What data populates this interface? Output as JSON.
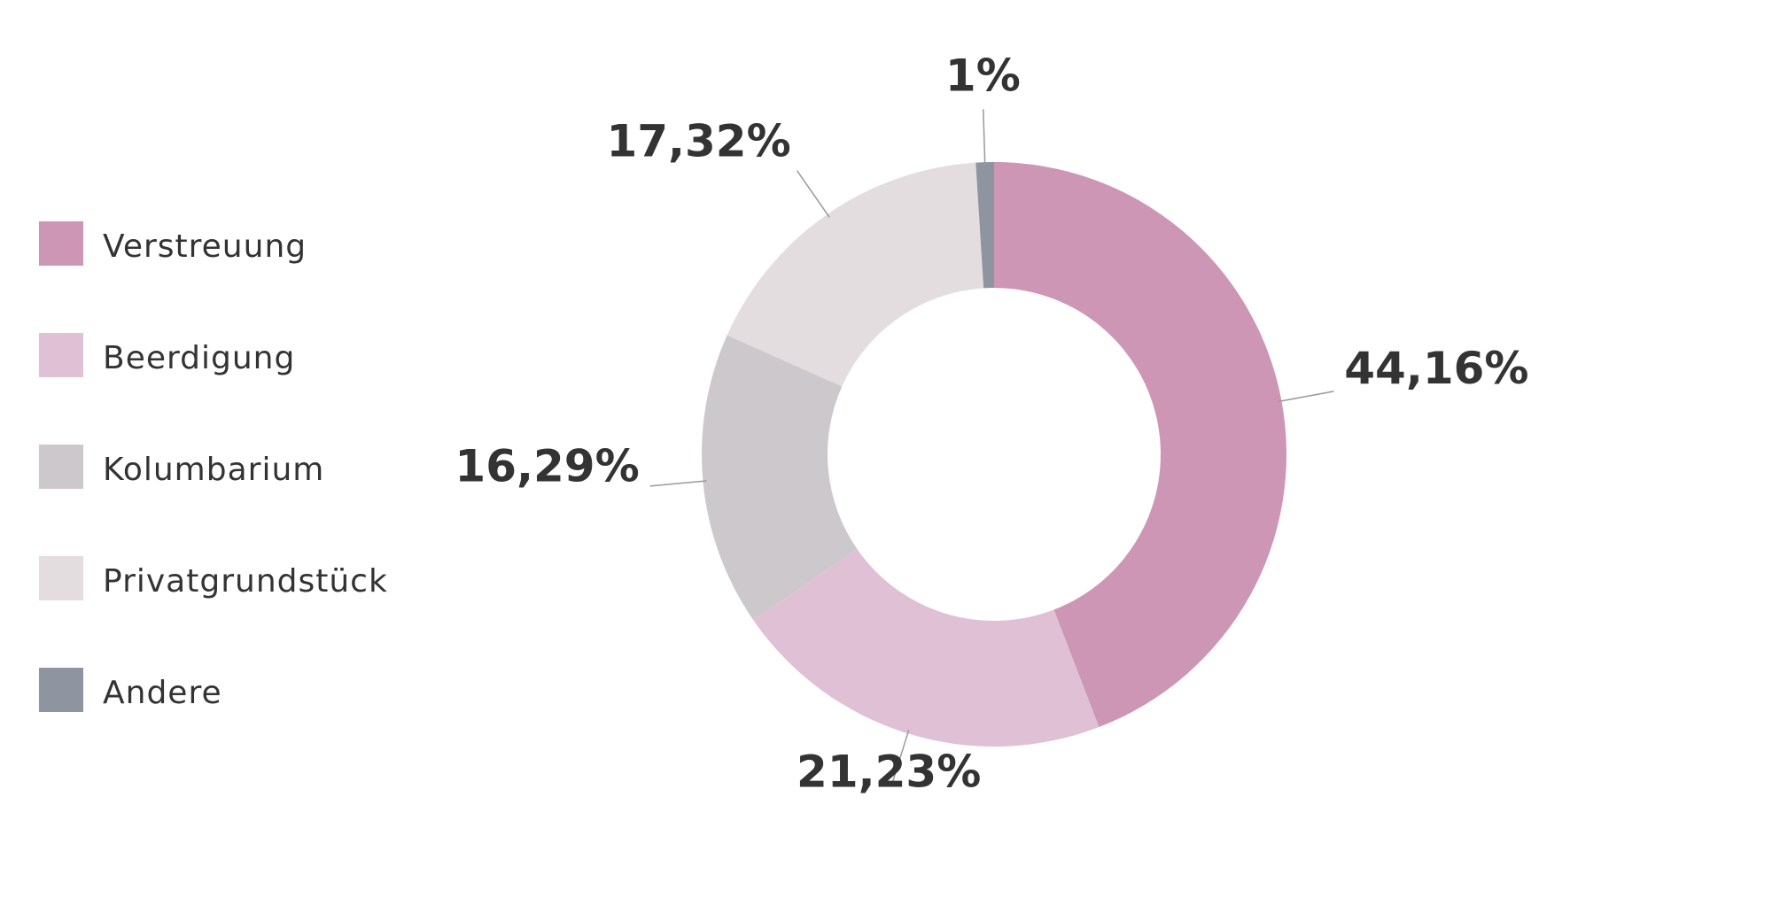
{
  "chart_data": {
    "type": "donut",
    "categories": [
      "Verstreuung",
      "Beerdigung",
      "Kolumbarium",
      "Privatgrundstück",
      "Andere"
    ],
    "values": [
      44.16,
      21.23,
      16.29,
      17.32,
      1
    ],
    "value_labels": [
      "44,16%",
      "21,23%",
      "16,29%",
      "17,32%",
      "1%"
    ],
    "colors": [
      "#cd96b4",
      "#e0c0d5",
      "#ccc8cb",
      "#e3dde0",
      "#8e94a0"
    ],
    "legend": "left"
  }
}
